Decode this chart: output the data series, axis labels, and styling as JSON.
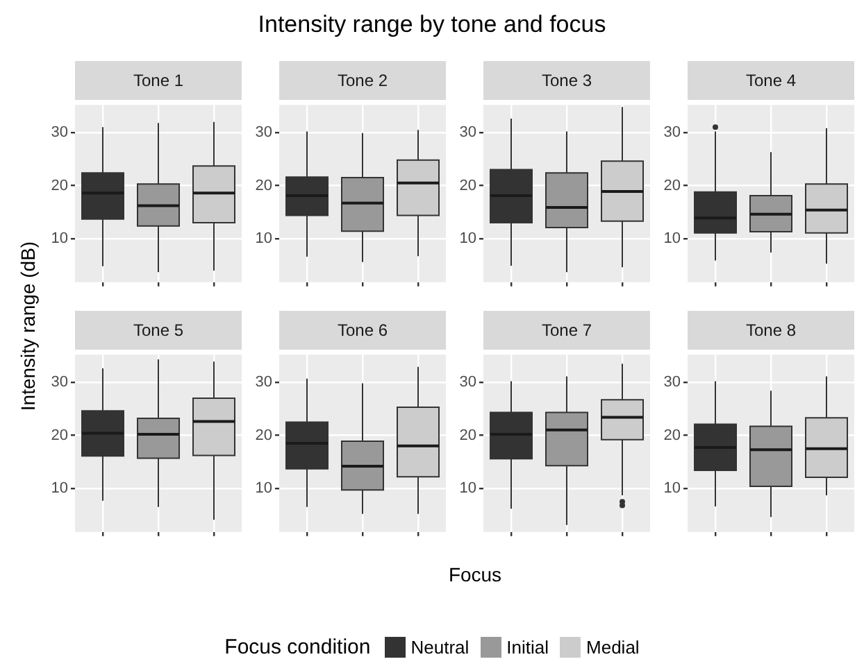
{
  "chart_data": [
    {
      "type": "box",
      "title": "Tone 1",
      "annotations": [
        "Intensity range by tone and focus",
        "Focus"
      ],
      "ylabel": "Intensity range (dB)",
      "legend_title": "Focus condition",
      "legend": "bottom",
      "categories": [
        null,
        null,
        null
      ],
      "ylim": [
        1.8,
        35.2
      ],
      "yticks": [
        10,
        20,
        30
      ],
      "grid": true,
      "tick_labels": "y",
      "series": [
        {
          "name": "Neutral",
          "color": "#333333",
          "boxes": [
            {
              "low": 4.8,
              "q1": 13.7,
              "median": 18.6,
              "q3": 22.4,
              "high": 31
            },
            null,
            null
          ]
        },
        {
          "name": "Initial",
          "color": "#999999",
          "boxes": [
            null,
            {
              "low": 3.7,
              "q1": 12.4,
              "median": 16.2,
              "q3": 20.3,
              "high": 31.8
            },
            null
          ]
        },
        {
          "name": "Medial",
          "color": "#cccccc",
          "boxes": [
            null,
            null,
            {
              "low": 4,
              "q1": 13,
              "median": 18.6,
              "q3": 23.7,
              "high": 32
            }
          ]
        }
      ]
    },
    {
      "type": "box",
      "title": "Tone 2",
      "categories": [
        null,
        null,
        null
      ],
      "ylim": [
        1.8,
        35.2
      ],
      "yticks": [
        10,
        20,
        30
      ],
      "grid": true,
      "tick_labels": "y",
      "series": [
        {
          "color": "#333333",
          "boxes": [
            {
              "low": 6.6,
              "q1": 14.4,
              "median": 18.1,
              "q3": 21.6,
              "high": 30.2
            },
            null,
            null
          ]
        },
        {
          "color": "#999999",
          "boxes": [
            null,
            {
              "low": 5.6,
              "q1": 11.4,
              "median": 16.7,
              "q3": 21.5,
              "high": 29.9
            },
            null
          ]
        },
        {
          "color": "#cccccc",
          "boxes": [
            null,
            null,
            {
              "low": 6.7,
              "q1": 14.4,
              "median": 20.5,
              "q3": 24.8,
              "high": 30.5
            }
          ]
        }
      ]
    },
    {
      "type": "box",
      "title": "Tone 3",
      "categories": [
        null,
        null,
        null
      ],
      "ylim": [
        1.8,
        35.2
      ],
      "yticks": [
        10,
        20,
        30
      ],
      "grid": true,
      "tick_labels": "y",
      "series": [
        {
          "color": "#333333",
          "boxes": [
            {
              "low": 4.9,
              "q1": 13,
              "median": 18.1,
              "q3": 23,
              "high": 32.6
            },
            null,
            null
          ]
        },
        {
          "color": "#999999",
          "boxes": [
            null,
            {
              "low": 3.7,
              "q1": 12.1,
              "median": 15.9,
              "q3": 22.4,
              "high": 30.2
            },
            null
          ]
        },
        {
          "color": "#cccccc",
          "boxes": [
            null,
            null,
            {
              "low": 4.6,
              "q1": 13.3,
              "median": 18.9,
              "q3": 24.6,
              "high": 34.8
            }
          ]
        }
      ]
    },
    {
      "type": "box",
      "title": "Tone 4",
      "categories": [
        null,
        null,
        null
      ],
      "ylim": [
        1.8,
        35.2
      ],
      "yticks": [
        10,
        20,
        30
      ],
      "grid": true,
      "tick_labels": "y",
      "series": [
        {
          "color": "#333333",
          "boxes": [
            {
              "low": 5.9,
              "q1": 11.1,
              "median": 13.9,
              "q3": 18.8,
              "high": 30.2,
              "outliers": [
                31
              ]
            },
            null,
            null
          ]
        },
        {
          "color": "#999999",
          "boxes": [
            null,
            {
              "low": 7.4,
              "q1": 11.3,
              "median": 14.6,
              "q3": 18.1,
              "high": 26.3
            },
            null
          ]
        },
        {
          "color": "#cccccc",
          "boxes": [
            null,
            null,
            {
              "low": 5.3,
              "q1": 11.1,
              "median": 15.4,
              "q3": 20.3,
              "high": 30.8
            }
          ]
        }
      ]
    },
    {
      "type": "box",
      "title": "Tone 5",
      "categories": [
        null,
        null,
        null
      ],
      "ylim": [
        1.8,
        35.2
      ],
      "yticks": [
        10,
        20,
        30
      ],
      "grid": true,
      "tick_labels": "y",
      "series": [
        {
          "color": "#333333",
          "boxes": [
            {
              "low": 7.7,
              "q1": 16.1,
              "median": 20.4,
              "q3": 24.6,
              "high": 32.6
            },
            null,
            null
          ]
        },
        {
          "color": "#999999",
          "boxes": [
            null,
            {
              "low": 6.5,
              "q1": 15.7,
              "median": 20.2,
              "q3": 23.2,
              "high": 34.3
            },
            null
          ]
        },
        {
          "color": "#cccccc",
          "boxes": [
            null,
            null,
            {
              "low": 4.1,
              "q1": 16.2,
              "median": 22.6,
              "q3": 27,
              "high": 33.9
            }
          ]
        }
      ]
    },
    {
      "type": "box",
      "title": "Tone 6",
      "categories": [
        null,
        null,
        null
      ],
      "ylim": [
        1.8,
        35.2
      ],
      "yticks": [
        10,
        20,
        30
      ],
      "grid": true,
      "tick_labels": "y",
      "series": [
        {
          "color": "#333333",
          "boxes": [
            {
              "low": 6.5,
              "q1": 13.7,
              "median": 18.5,
              "q3": 22.5,
              "high": 30.7
            },
            null,
            null
          ]
        },
        {
          "color": "#999999",
          "boxes": [
            null,
            {
              "low": 5.2,
              "q1": 9.7,
              "median": 14.2,
              "q3": 18.9,
              "high": 29.8
            },
            null
          ]
        },
        {
          "color": "#cccccc",
          "boxes": [
            null,
            null,
            {
              "low": 5.2,
              "q1": 12.2,
              "median": 18,
              "q3": 25.3,
              "high": 32.9
            }
          ]
        }
      ]
    },
    {
      "type": "box",
      "title": "Tone 7",
      "categories": [
        null,
        null,
        null
      ],
      "ylim": [
        1.8,
        35.2
      ],
      "yticks": [
        10,
        20,
        30
      ],
      "grid": true,
      "tick_labels": "y",
      "series": [
        {
          "color": "#333333",
          "boxes": [
            {
              "low": 6.2,
              "q1": 15.6,
              "median": 20.2,
              "q3": 24.3,
              "high": 30.2
            },
            null,
            null
          ]
        },
        {
          "color": "#999999",
          "boxes": [
            null,
            {
              "low": 3.1,
              "q1": 14.3,
              "median": 21,
              "q3": 24.3,
              "high": 31.1
            },
            null
          ]
        },
        {
          "color": "#cccccc",
          "boxes": [
            null,
            null,
            {
              "low": 8.7,
              "q1": 19.2,
              "median": 23.4,
              "q3": 26.7,
              "high": 33.5,
              "outliers": [
                7.5,
                6.8
              ]
            }
          ]
        }
      ]
    },
    {
      "type": "box",
      "title": "Tone 8",
      "categories": [
        null,
        null,
        null
      ],
      "ylim": [
        1.8,
        35.2
      ],
      "yticks": [
        10,
        20,
        30
      ],
      "grid": true,
      "tick_labels": "y",
      "series": [
        {
          "color": "#333333",
          "boxes": [
            {
              "low": 6.6,
              "q1": 13.4,
              "median": 17.7,
              "q3": 22.1,
              "high": 30.2
            },
            null,
            null
          ]
        },
        {
          "color": "#999999",
          "boxes": [
            null,
            {
              "low": 4.6,
              "q1": 10.4,
              "median": 17.3,
              "q3": 21.7,
              "high": 28.4
            },
            null
          ]
        },
        {
          "color": "#cccccc",
          "boxes": [
            null,
            null,
            {
              "low": 8.7,
              "q1": 12.1,
              "median": 17.5,
              "q3": 23.3,
              "high": 31.1
            }
          ]
        }
      ]
    }
  ]
}
